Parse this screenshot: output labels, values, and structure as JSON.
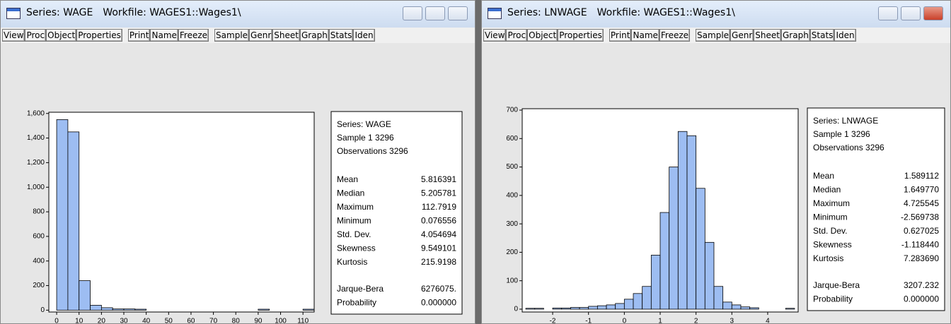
{
  "windows": [
    {
      "title": [
        "Series: WAGE",
        "Workfile: WAGES1::Wages1\\"
      ],
      "toolbar": [
        "View",
        "Proc",
        "Object",
        "Properties",
        "Print",
        "Name",
        "Freeze",
        "Sample",
        "Genr",
        "Sheet",
        "Graph",
        "Stats",
        "Iden"
      ],
      "stats": {
        "header": [
          "Series: WAGE",
          "Sample 1 3296",
          "Observations 3296"
        ],
        "rows": [
          [
            "Mean",
            "5.816391"
          ],
          [
            "Median",
            "5.205781"
          ],
          [
            "Maximum",
            "112.7919"
          ],
          [
            "Minimum",
            "0.076556"
          ],
          [
            "Std. Dev.",
            "4.054694"
          ],
          [
            "Skewness",
            "9.549101"
          ],
          [
            "Kurtosis",
            "215.9198"
          ]
        ],
        "tests": [
          [
            "Jarque-Bera",
            "6276075."
          ],
          [
            "Probability",
            "0.000000"
          ]
        ]
      }
    },
    {
      "title": [
        "Series: LNWAGE",
        "Workfile: WAGES1::Wages1\\"
      ],
      "toolbar": [
        "View",
        "Proc",
        "Object",
        "Properties",
        "Print",
        "Name",
        "Freeze",
        "Sample",
        "Genr",
        "Sheet",
        "Graph",
        "Stats",
        "Iden"
      ],
      "stats": {
        "header": [
          "Series: LNWAGE",
          "Sample 1 3296",
          "Observations 3296"
        ],
        "rows": [
          [
            "Mean",
            "1.589112"
          ],
          [
            "Median",
            "1.649770"
          ],
          [
            "Maximum",
            "4.725545"
          ],
          [
            "Minimum",
            "-2.569738"
          ],
          [
            "Std. Dev.",
            "0.627025"
          ],
          [
            "Skewness",
            "-1.118440"
          ],
          [
            "Kurtosis",
            "7.283690"
          ]
        ],
        "tests": [
          [
            "Jarque-Bera",
            "3207.232"
          ],
          [
            "Probability",
            "0.000000"
          ]
        ]
      }
    }
  ],
  "chart_data": [
    {
      "type": "histogram",
      "color": "#9dbdf2",
      "bins": [
        0,
        5,
        10,
        15,
        20,
        25,
        30,
        35,
        40,
        45,
        50,
        55,
        60,
        65,
        70,
        75,
        80,
        85,
        90,
        95,
        100,
        105,
        110,
        115
      ],
      "counts": [
        1550,
        1450,
        240,
        40,
        20,
        10,
        10,
        8,
        0,
        0,
        0,
        0,
        0,
        0,
        0,
        0,
        0,
        0,
        8,
        0,
        0,
        0,
        8
      ],
      "xlim": [
        -3.5,
        115
      ],
      "ylim": [
        -15,
        1610
      ],
      "xticks": [
        0,
        10,
        20,
        30,
        40,
        50,
        60,
        70,
        80,
        90,
        100,
        110
      ],
      "yticks": [
        0,
        200,
        400,
        600,
        800,
        {
          "value": 1000,
          "label": "1,000"
        },
        {
          "value": 1200,
          "label": "1,200"
        },
        {
          "value": 1400,
          "label": "1,400"
        },
        {
          "value": 1600,
          "label": "1,600"
        }
      ]
    },
    {
      "type": "histogram",
      "color": "#9dbdf2",
      "bins": [
        -2.75,
        -2.5,
        -2.25,
        -2,
        -1.75,
        -1.5,
        -1.25,
        -1,
        -0.75,
        -0.5,
        -0.25,
        0,
        0.25,
        0.5,
        0.75,
        1,
        1.25,
        1.5,
        1.75,
        2,
        2.25,
        2.5,
        2.75,
        3,
        3.25,
        3.5,
        3.75,
        4,
        4.25,
        4.5,
        4.75
      ],
      "counts": [
        3,
        3,
        0,
        4,
        4,
        6,
        6,
        10,
        12,
        15,
        20,
        35,
        55,
        80,
        190,
        340,
        500,
        625,
        610,
        425,
        235,
        80,
        25,
        15,
        8,
        5,
        0,
        0,
        0,
        3
      ],
      "xlim": [
        -2.85,
        4.85
      ],
      "ylim": [
        -10,
        705
      ],
      "xticks": [
        -2,
        -1,
        0,
        1,
        2,
        3,
        4
      ],
      "yticks": [
        0,
        100,
        200,
        300,
        400,
        500,
        600,
        700
      ]
    }
  ]
}
